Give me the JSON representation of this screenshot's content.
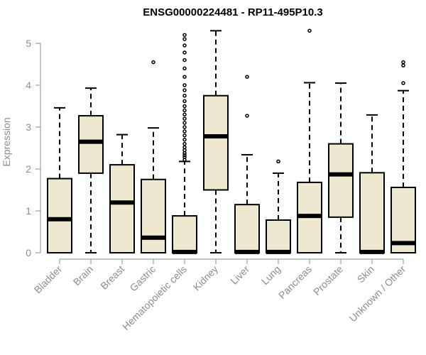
{
  "chart_data": {
    "type": "boxplot",
    "title": "ENSG00000224481 - RP11-495P10.3",
    "ylabel": "Expression",
    "xlabel": "",
    "ylim": [
      0,
      5.3
    ],
    "yticks": [
      0,
      1,
      2,
      3,
      4,
      5
    ],
    "box_fill": "#efe8d0",
    "box_stroke": "#000000",
    "axis_color": "#8c8c8c",
    "categories": [
      "Bladder",
      "Brain",
      "Breast",
      "Gastric",
      "Hematopoietic cells",
      "Kidney",
      "Liver",
      "Lung",
      "Pancreas",
      "Prostate",
      "Skin",
      "Unknown / Other"
    ],
    "boxes": [
      {
        "min": 0,
        "q1": 0,
        "median": 0.8,
        "q3": 1.77,
        "max": 3.46,
        "outliers": []
      },
      {
        "min": 0,
        "q1": 1.9,
        "median": 2.65,
        "q3": 3.27,
        "max": 3.93,
        "outliers": []
      },
      {
        "min": 0,
        "q1": 0,
        "median": 1.2,
        "q3": 2.1,
        "max": 2.82,
        "outliers": []
      },
      {
        "min": 0,
        "q1": 0,
        "median": 0.36,
        "q3": 1.75,
        "max": 2.98,
        "outliers": [
          4.55
        ]
      },
      {
        "min": 0,
        "q1": 0,
        "median": 0.02,
        "q3": 0.88,
        "max": 2.18,
        "outliers": [
          2.22,
          2.28,
          2.33,
          2.38,
          2.45,
          2.52,
          2.6,
          2.7,
          2.8,
          2.9,
          3.0,
          3.1,
          3.2,
          3.3,
          3.4,
          3.5,
          3.62,
          3.75,
          3.88,
          4.0,
          4.2,
          4.4,
          4.6,
          4.78,
          4.95,
          5.1,
          5.2
        ]
      },
      {
        "min": 0,
        "q1": 1.5,
        "median": 2.78,
        "q3": 3.75,
        "max": 5.3,
        "outliers": []
      },
      {
        "min": 0,
        "q1": 0,
        "median": 0.02,
        "q3": 1.15,
        "max": 2.34,
        "outliers": [
          3.27,
          4.2
        ]
      },
      {
        "min": 0,
        "q1": 0,
        "median": 0.02,
        "q3": 0.78,
        "max": 1.9,
        "outliers": [
          2.18
        ]
      },
      {
        "min": 0,
        "q1": 0,
        "median": 0.88,
        "q3": 1.68,
        "max": 4.06,
        "outliers": [
          5.3
        ]
      },
      {
        "min": 0,
        "q1": 0.85,
        "median": 1.87,
        "q3": 2.6,
        "max": 4.05,
        "outliers": []
      },
      {
        "min": 0,
        "q1": 0,
        "median": 0.02,
        "q3": 1.91,
        "max": 3.29,
        "outliers": []
      },
      {
        "min": 0,
        "q1": 0,
        "median": 0.23,
        "q3": 1.56,
        "max": 3.87,
        "outliers": [
          4.05,
          4.47,
          4.55
        ]
      }
    ]
  }
}
